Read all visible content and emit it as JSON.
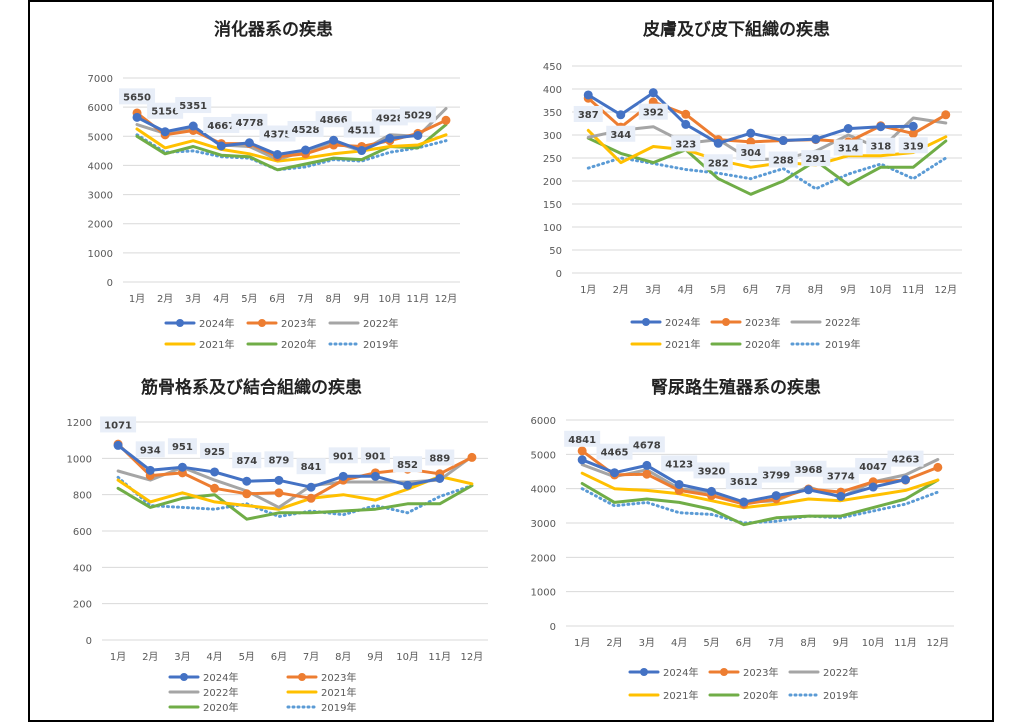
{
  "months": [
    "1月",
    "2月",
    "3月",
    "4月",
    "5月",
    "6月",
    "7月",
    "8月",
    "9月",
    "10月",
    "11月",
    "12月"
  ],
  "chart_data": [
    {
      "type": "line",
      "title": "消化器系の疾患",
      "title_highlight": true,
      "ylim": [
        0,
        7000
      ],
      "yticks": [
        0,
        1000,
        2000,
        3000,
        4000,
        5000,
        6000,
        7000
      ],
      "grid": true,
      "legend_position": "bottom",
      "series": [
        {
          "name": "2024年",
          "color": "#4472c4",
          "style": "marker",
          "labels": true,
          "values": [
            5650,
            5156,
            5351,
            4667,
            4778,
            4375,
            4528,
            4866,
            4511,
            4928,
            5029,
            null
          ]
        },
        {
          "name": "2023年",
          "color": "#ed7d31",
          "style": "marker",
          "labels": false,
          "values": [
            5800,
            5050,
            5200,
            4750,
            4750,
            4300,
            4400,
            4700,
            4650,
            4850,
            5100,
            5550
          ]
        },
        {
          "name": "2022年",
          "color": "#a5a5a5",
          "style": "solid",
          "labels": false,
          "values": [
            5400,
            5100,
            5300,
            4700,
            4650,
            4200,
            4500,
            4800,
            4500,
            5050,
            5000,
            5950
          ]
        },
        {
          "name": "2021年",
          "color": "#ffc000",
          "style": "solid",
          "labels": false,
          "values": [
            5250,
            4600,
            4850,
            4550,
            4400,
            4150,
            4250,
            4400,
            4500,
            4650,
            4700,
            5050
          ]
        },
        {
          "name": "2020年",
          "color": "#70ad47",
          "style": "solid",
          "labels": false,
          "values": [
            5000,
            4400,
            4650,
            4350,
            4300,
            3850,
            4050,
            4250,
            4200,
            4650,
            4600,
            5400
          ]
        },
        {
          "name": "2019年",
          "color": "#5b9bd5",
          "style": "dotted",
          "labels": false,
          "values": [
            5050,
            4450,
            4500,
            4300,
            4250,
            3850,
            3950,
            4200,
            4150,
            4450,
            4600,
            4850
          ]
        }
      ]
    },
    {
      "type": "line",
      "title": "皮膚及び皮下組織の疾患",
      "title_highlight": false,
      "ylim": [
        0,
        450
      ],
      "yticks": [
        0,
        50,
        100,
        150,
        200,
        250,
        300,
        350,
        400,
        450
      ],
      "grid": true,
      "legend_position": "bottom",
      "series": [
        {
          "name": "2024年",
          "color": "#4472c4",
          "style": "marker",
          "labels": true,
          "values": [
            387,
            344,
            392,
            323,
            282,
            304,
            288,
            291,
            314,
            318,
            319,
            null
          ]
        },
        {
          "name": "2023年",
          "color": "#ed7d31",
          "style": "marker",
          "labels": false,
          "values": [
            380,
            317,
            372,
            345,
            290,
            285,
            288,
            290,
            285,
            320,
            303,
            344
          ]
        },
        {
          "name": "2022年",
          "color": "#a5a5a5",
          "style": "solid",
          "labels": false,
          "values": [
            295,
            310,
            318,
            282,
            290,
            246,
            248,
            265,
            300,
            270,
            337,
            326
          ]
        },
        {
          "name": "2021年",
          "color": "#ffc000",
          "style": "solid",
          "labels": false,
          "values": [
            310,
            240,
            275,
            268,
            245,
            230,
            240,
            235,
            255,
            255,
            262,
            296
          ]
        },
        {
          "name": "2020年",
          "color": "#70ad47",
          "style": "solid",
          "labels": false,
          "values": [
            293,
            260,
            240,
            268,
            205,
            171,
            200,
            244,
            192,
            230,
            230,
            287
          ]
        },
        {
          "name": "2019年",
          "color": "#5b9bd5",
          "style": "dotted",
          "labels": false,
          "values": [
            228,
            250,
            238,
            225,
            217,
            205,
            227,
            183,
            215,
            237,
            205,
            250
          ]
        }
      ]
    },
    {
      "type": "line",
      "title": "筋骨格系及び結合組織の疾患",
      "title_highlight": true,
      "ylim": [
        0,
        1200
      ],
      "yticks": [
        0,
        200,
        400,
        600,
        800,
        1000,
        1200
      ],
      "grid": true,
      "legend_position": "bottom",
      "series": [
        {
          "name": "2024年",
          "color": "#4472c4",
          "style": "marker",
          "labels": true,
          "values": [
            1071,
            934,
            951,
            925,
            874,
            879,
            841,
            901,
            901,
            852,
            889,
            null
          ]
        },
        {
          "name": "2023年",
          "color": "#ed7d31",
          "style": "marker",
          "labels": false,
          "values": [
            1078,
            905,
            920,
            835,
            805,
            810,
            780,
            880,
            920,
            940,
            915,
            1005
          ]
        },
        {
          "name": "2022年",
          "color": "#a5a5a5",
          "style": "solid",
          "labels": false,
          "values": [
            930,
            880,
            950,
            880,
            820,
            730,
            850,
            870,
            870,
            870,
            880,
            1010
          ]
        },
        {
          "name": "2021年",
          "color": "#ffc000",
          "style": "solid",
          "labels": false,
          "values": [
            880,
            760,
            810,
            760,
            740,
            720,
            780,
            800,
            770,
            830,
            900,
            860
          ]
        },
        {
          "name": "2020年",
          "color": "#70ad47",
          "style": "solid",
          "labels": false,
          "values": [
            835,
            730,
            780,
            800,
            665,
            700,
            700,
            710,
            720,
            750,
            750,
            850
          ]
        },
        {
          "name": "2019年",
          "color": "#5b9bd5",
          "style": "dotted",
          "labels": false,
          "values": [
            895,
            740,
            730,
            720,
            750,
            680,
            710,
            690,
            740,
            700,
            790,
            850
          ]
        }
      ]
    },
    {
      "type": "line",
      "title": "腎尿路生殖器系の疾患",
      "title_highlight": true,
      "ylim": [
        0,
        6000
      ],
      "yticks": [
        0,
        1000,
        2000,
        3000,
        4000,
        5000,
        6000
      ],
      "grid": true,
      "legend_position": "bottom",
      "series": [
        {
          "name": "2024年",
          "color": "#4472c4",
          "style": "marker",
          "labels": true,
          "values": [
            4841,
            4465,
            4678,
            4123,
            3920,
            3612,
            3799,
            3968,
            3774,
            4047,
            4263,
            null
          ]
        },
        {
          "name": "2023年",
          "color": "#ed7d31",
          "style": "marker",
          "labels": false,
          "values": [
            5100,
            4400,
            4420,
            3950,
            3800,
            3550,
            3700,
            3990,
            3900,
            4200,
            4250,
            4620
          ]
        },
        {
          "name": "2022年",
          "color": "#a5a5a5",
          "style": "solid",
          "labels": false,
          "values": [
            4700,
            4350,
            4550,
            4000,
            3900,
            3600,
            3650,
            4050,
            3750,
            4200,
            4400,
            4850
          ]
        },
        {
          "name": "2021年",
          "color": "#ffc000",
          "style": "solid",
          "labels": false,
          "values": [
            4450,
            4000,
            3950,
            3850,
            3650,
            3450,
            3550,
            3700,
            3650,
            3800,
            3950,
            4250
          ]
        },
        {
          "name": "2020年",
          "color": "#70ad47",
          "style": "solid",
          "labels": false,
          "values": [
            4150,
            3600,
            3700,
            3600,
            3400,
            2950,
            3150,
            3200,
            3200,
            3450,
            3700,
            4250
          ]
        },
        {
          "name": "2019年",
          "color": "#5b9bd5",
          "style": "dotted",
          "labels": false,
          "values": [
            4000,
            3500,
            3600,
            3300,
            3250,
            3000,
            3050,
            3200,
            3150,
            3350,
            3550,
            3900
          ]
        }
      ]
    }
  ]
}
